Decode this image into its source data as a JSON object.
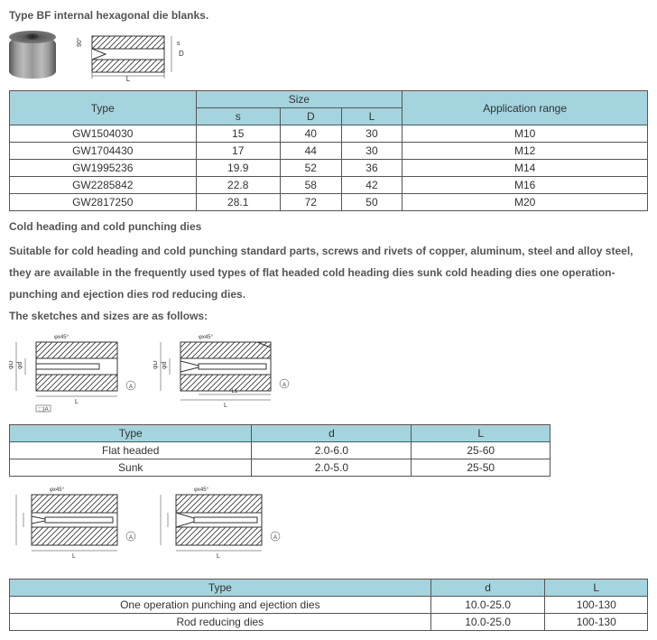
{
  "title1": "Type BF internal hexagonal die blanks.",
  "table1": {
    "headers": {
      "type": "Type",
      "size": "Size",
      "s": "s",
      "d": "D",
      "l": "L",
      "app": "Application range"
    },
    "rows": [
      {
        "type": "GW1504030",
        "s": "15",
        "d": "40",
        "l": "30",
        "app": "M10"
      },
      {
        "type": "GW1704430",
        "s": "17",
        "d": "44",
        "l": "30",
        "app": "M12"
      },
      {
        "type": "GW1995236",
        "s": "19.9",
        "d": "52",
        "l": "36",
        "app": "M14"
      },
      {
        "type": "GW2285842",
        "s": "22.8",
        "d": "58",
        "l": "42",
        "app": "M16"
      },
      {
        "type": "GW2817250",
        "s": "28.1",
        "d": "72",
        "l": "50",
        "app": "M20"
      }
    ]
  },
  "title2": "Cold heading and cold punching dies",
  "desc2": "Suitable for cold heading and cold punching standard parts, screws and rivets of copper, aluminum, steel and alloy steel, they are available in the frequently used types of flat headed cold heading dies sunk cold heading dies one operation-punching and ejection dies rod reducing dies.",
  "title3": "The sketches and sizes are as follows:",
  "table2": {
    "headers": {
      "type": "Type",
      "d": "d",
      "l": "L"
    },
    "rows": [
      {
        "type": "Flat headed",
        "d": "2.0-6.0",
        "l": "25-60"
      },
      {
        "type": "Sunk",
        "d": "2.0-5.0",
        "l": "25-50"
      }
    ]
  },
  "table3": {
    "headers": {
      "type": "Type",
      "d": "d",
      "l": "L"
    },
    "rows": [
      {
        "type": "One operation punching and ejection dies",
        "d": "10.0-25.0",
        "l": "100-130"
      },
      {
        "type": "Rod reducing dies",
        "d": "10.0-25.0",
        "l": "100-130"
      }
    ]
  },
  "colors": {
    "header_bg": "#a4d4dd",
    "border": "#555555"
  }
}
